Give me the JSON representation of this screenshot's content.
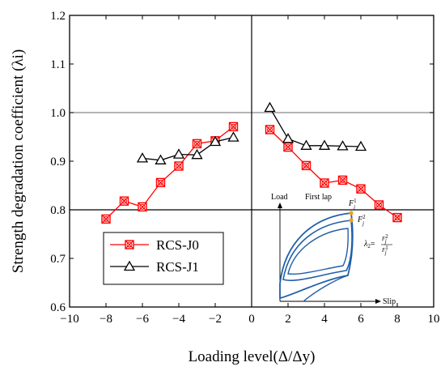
{
  "chart_data": {
    "type": "line",
    "title": "",
    "xlabel": "Loading level(Δ/Δy)",
    "ylabel": "Strength degradation coefficient (λi)",
    "xlim": [
      -10,
      10
    ],
    "ylim": [
      0.6,
      1.2
    ],
    "x_ticks": [
      "−10",
      "−8",
      "−6",
      "−4",
      "−2",
      "0",
      "2",
      "4",
      "6",
      "8",
      "10"
    ],
    "y_ticks": [
      "0.6",
      "0.7",
      "0.8",
      "0.9",
      "1.0",
      "1.1",
      "1.2"
    ],
    "reference_lines_y": [
      0.8,
      1.0
    ],
    "reference_line_x": 0,
    "legend_position": "bottom-left",
    "series": [
      {
        "name": "RCS-J0",
        "color": "#ff0000",
        "marker": "crossed-square",
        "segments": [
          {
            "x": [
              -8,
              -7,
              -6,
              -5,
              -4,
              -3,
              -2,
              -1
            ],
            "y": [
              0.781,
              0.818,
              0.806,
              0.856,
              0.89,
              0.936,
              0.942,
              0.971
            ]
          },
          {
            "x": [
              1,
              2,
              3,
              4,
              5,
              6,
              7,
              8
            ],
            "y": [
              0.965,
              0.929,
              0.891,
              0.855,
              0.861,
              0.843,
              0.81,
              0.784
            ]
          }
        ]
      },
      {
        "name": "RCS-J1",
        "color": "#000000",
        "marker": "open-triangle",
        "segments": [
          {
            "x": [
              -6,
              -5,
              -4,
              -3,
              -2,
              -1
            ],
            "y": [
              0.906,
              0.902,
              0.914,
              0.913,
              0.94,
              0.949
            ]
          },
          {
            "x": [
              1,
              2,
              3,
              4,
              5,
              6
            ],
            "y": [
              1.01,
              0.946,
              0.932,
              0.932,
              0.931,
              0.93
            ]
          }
        ]
      }
    ],
    "inset": {
      "y_label": "Load",
      "x_label": "Slip",
      "first_lap_label": "First lap",
      "point_label_1": "F",
      "point_label_1_sup": "1",
      "point_label_1_sub": "j",
      "point_label_2": "F",
      "point_label_2_sup": "2",
      "point_label_2_sub": "j",
      "formula_lhs": "λ",
      "formula_lhs_sub": "2",
      "formula_eq": "=",
      "formula_num": "F",
      "formula_num_sup": "2",
      "formula_num_sub": "j",
      "formula_den": "F",
      "formula_den_sup": "1",
      "formula_den_sub": "j",
      "curve_color": "#1f5fa8",
      "point_color": "#f0a020"
    }
  }
}
